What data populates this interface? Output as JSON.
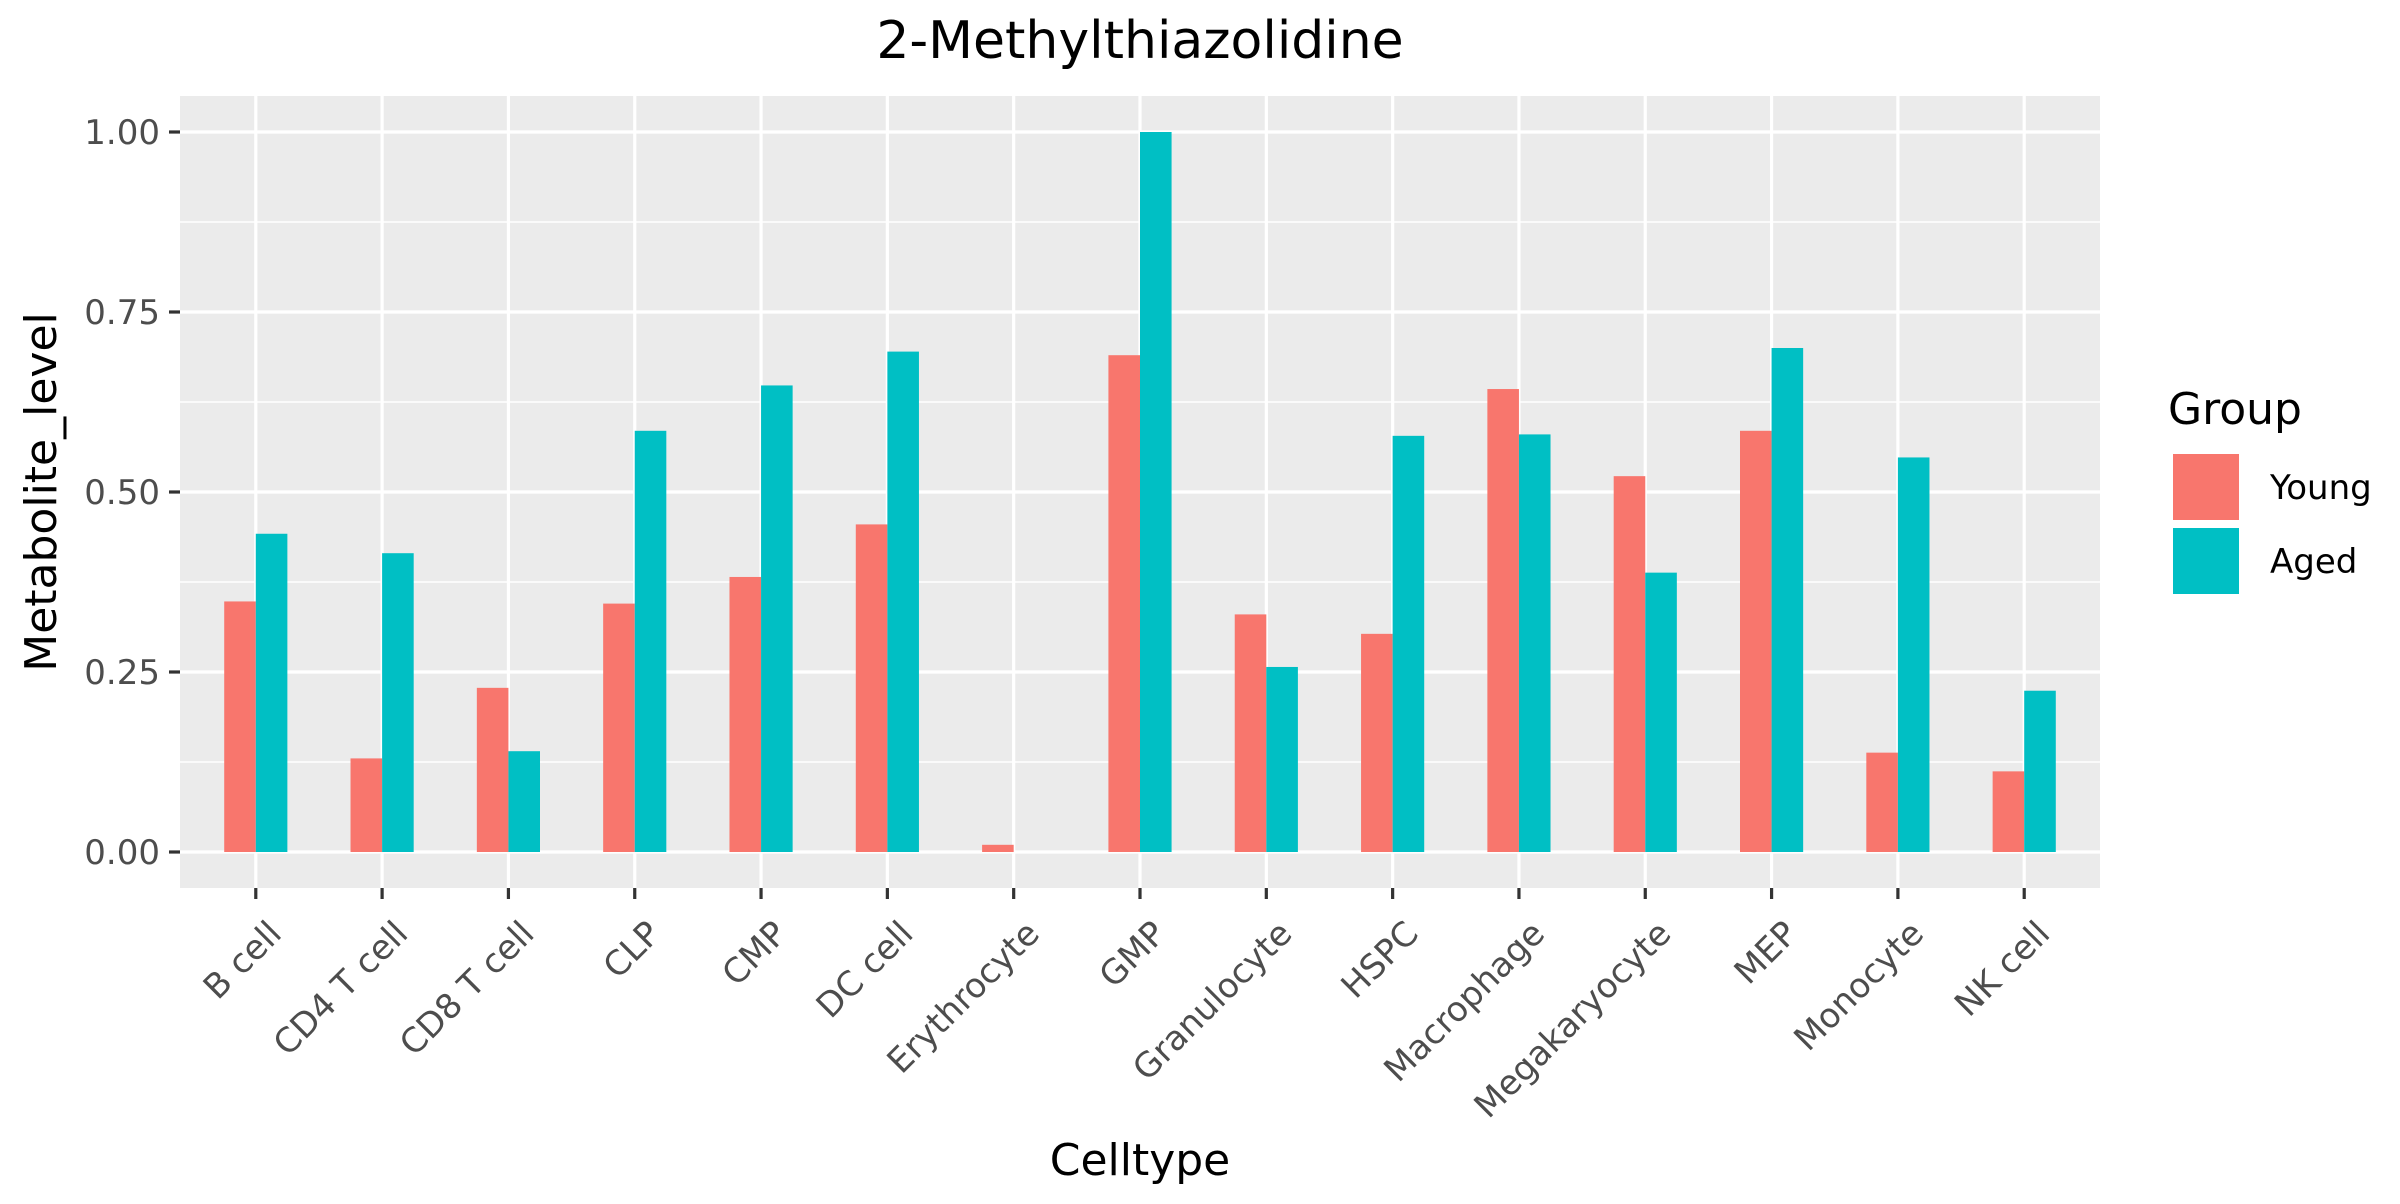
{
  "chart_data": {
    "type": "bar",
    "title": "2-Methylthiazolidine",
    "xlabel": "Celltype",
    "ylabel": "Metabolite_level",
    "ylim": [
      -0.05,
      1.05
    ],
    "yticks": [
      0.0,
      0.25,
      0.5,
      0.75,
      1.0
    ],
    "ytick_labels": [
      "0.00",
      "0.25",
      "0.50",
      "0.75",
      "1.00"
    ],
    "grid": true,
    "categories": [
      "B cell",
      "CD4 T cell",
      "CD8 T cell",
      "CLP",
      "CMP",
      "DC cell",
      "Erythrocyte",
      "GMP",
      "Granulocyte",
      "HSPC",
      "Macrophage",
      "Megakaryocyte",
      "MEP",
      "Monocyte",
      "NK cell"
    ],
    "series": [
      {
        "name": "Young",
        "color": "#F8766D",
        "values": [
          0.348,
          0.13,
          0.228,
          0.345,
          0.382,
          0.455,
          0.01,
          0.69,
          0.33,
          0.303,
          0.643,
          0.522,
          0.585,
          0.138,
          0.112
        ]
      },
      {
        "name": "Aged",
        "color": "#00BFC4",
        "values": [
          0.442,
          0.415,
          0.14,
          0.585,
          0.648,
          0.695,
          0.0,
          1.0,
          0.257,
          0.578,
          0.58,
          0.388,
          0.7,
          0.548,
          0.224
        ]
      }
    ],
    "legend": {
      "title": "Group",
      "position": "right"
    },
    "panel_background": "#EBEBEB",
    "grid_color": "#FFFFFF"
  }
}
